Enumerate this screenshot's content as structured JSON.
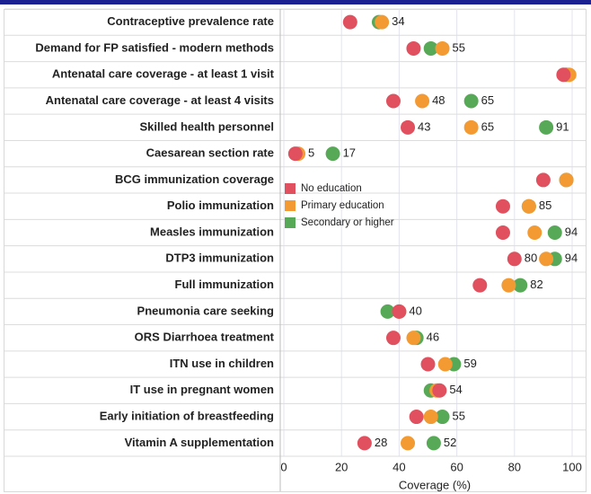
{
  "chart_data": {
    "type": "dot",
    "categories": [
      "Contraceptive prevalence rate",
      "Demand for FP satisfied - modern methods",
      "Antenatal care coverage - at least 1 visit",
      "Antenatal care coverage - at least 4 visits",
      "Skilled health personnel",
      "Caesarean section rate",
      "BCG immunization coverage",
      "Polio immunization",
      "Measles immunization",
      "DTP3 immunization",
      "Full immunization",
      "Pneumonia care seeking",
      "ORS Diarrhoea treatment",
      "ITN use in children",
      "IT use in pregnant women",
      "Early initiation of breastfeeding",
      "Vitamin A supplementation"
    ],
    "series": [
      {
        "name": "Secondary or higher",
        "color": "#58a957",
        "values": [
          33,
          51,
          98,
          65,
          91,
          17,
          98,
          85,
          94,
          94,
          82,
          36,
          46,
          59,
          51,
          55,
          52
        ],
        "value_labels": [
          null,
          null,
          null,
          "65",
          "91",
          "17",
          null,
          null,
          "94",
          "94",
          "82",
          null,
          "46",
          "59",
          null,
          "55",
          "52"
        ]
      },
      {
        "name": "Primary education",
        "color": "#f39a32",
        "values": [
          34,
          55,
          99,
          48,
          65,
          5,
          98,
          85,
          87,
          91,
          78,
          40,
          45,
          56,
          53,
          51,
          43
        ],
        "value_labels": [
          "34",
          "55",
          null,
          "48",
          "65",
          "5",
          null,
          "85",
          null,
          null,
          null,
          null,
          null,
          null,
          null,
          null,
          null
        ]
      },
      {
        "name": "No education",
        "color": "#e0505e",
        "values": [
          23,
          45,
          97,
          38,
          43,
          4,
          90,
          76,
          76,
          80,
          68,
          40,
          38,
          50,
          54,
          46,
          28
        ],
        "value_labels": [
          null,
          null,
          null,
          null,
          "43",
          null,
          null,
          null,
          null,
          "80",
          null,
          "40",
          null,
          null,
          "54",
          null,
          "28"
        ]
      }
    ],
    "legend_order": [
      2,
      1,
      0
    ],
    "xlabel": "Coverage (%)",
    "xlim": [
      0,
      105
    ],
    "xticks": [
      0,
      20,
      40,
      60,
      80,
      100
    ],
    "grid": true
  }
}
